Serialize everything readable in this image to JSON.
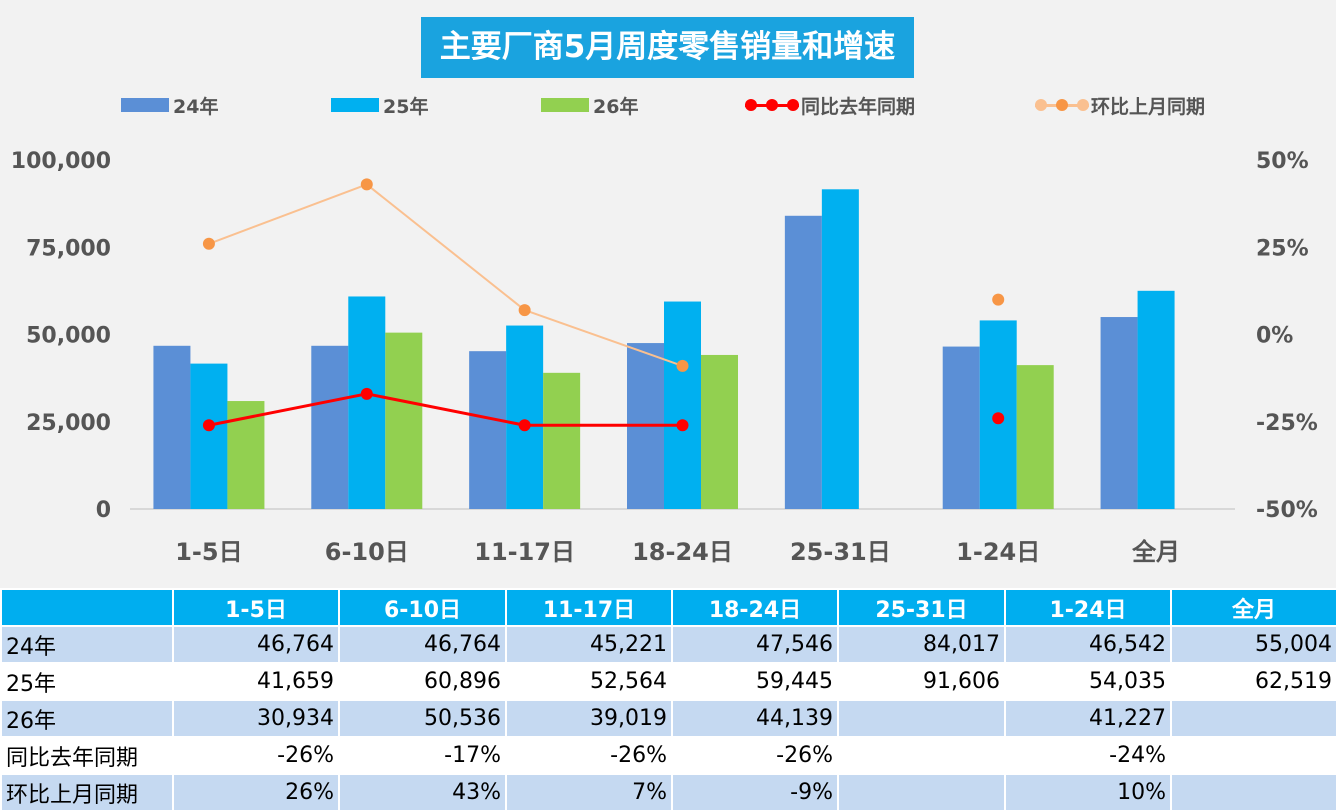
{
  "chart_data": {
    "type": "bar",
    "title": "主要厂商5月周度零售销量和增速",
    "categories": [
      "1-5日",
      "6-10日",
      "11-17日",
      "18-24日",
      "25-31日",
      "1-24日",
      "全月"
    ],
    "series": [
      {
        "name": "24年",
        "kind": "bar",
        "color": "#5b8fd6",
        "values": [
          46764,
          46764,
          45221,
          47546,
          84017,
          46542,
          55004
        ]
      },
      {
        "name": "25年",
        "kind": "bar",
        "color": "#00b0f0",
        "values": [
          41659,
          60896,
          52564,
          59445,
          91606,
          54035,
          62519
        ]
      },
      {
        "name": "26年",
        "kind": "bar",
        "color": "#92d050",
        "values": [
          30934,
          50536,
          39019,
          44139,
          null,
          41227,
          null
        ]
      },
      {
        "name": "同比去年同期",
        "kind": "line",
        "axis": "right",
        "color": "#ff0000",
        "values": [
          -26,
          -17,
          -26,
          -26,
          null,
          -24,
          null
        ]
      },
      {
        "name": "环比上月同期",
        "kind": "line",
        "axis": "right",
        "color": "#f79646",
        "line_color": "#fac090",
        "values": [
          26,
          43,
          7,
          -9,
          null,
          10,
          null
        ]
      }
    ],
    "y_left": {
      "min": 0,
      "max": 100000,
      "ticks": [
        "0",
        "25,000",
        "50,000",
        "75,000",
        "100,000"
      ]
    },
    "y_right": {
      "min": -50,
      "max": 50,
      "unit": "%",
      "ticks": [
        "-50%",
        "-25%",
        "0%",
        "25%",
        "50%"
      ]
    },
    "legend_placement": "top",
    "grid": false
  },
  "table": {
    "header": [
      "",
      "1-5日",
      "6-10日",
      "11-17日",
      "18-24日",
      "25-31日",
      "1-24日",
      "全月"
    ],
    "rows": [
      {
        "label": "24年",
        "cells": [
          "46,764",
          "46,764",
          "45,221",
          "47,546",
          "84,017",
          "46,542",
          "55,004"
        ]
      },
      {
        "label": "25年",
        "cells": [
          "41,659",
          "60,896",
          "52,564",
          "59,445",
          "91,606",
          "54,035",
          "62,519"
        ]
      },
      {
        "label": "26年",
        "cells": [
          "30,934",
          "50,536",
          "39,019",
          "44,139",
          "",
          "41,227",
          ""
        ]
      },
      {
        "label": "同比去年同期",
        "cells": [
          "-26%",
          "-17%",
          "-26%",
          "-26%",
          "",
          "-24%",
          ""
        ]
      },
      {
        "label": "环比上月同期",
        "cells": [
          "26%",
          "43%",
          "7%",
          "-9%",
          "",
          "10%",
          ""
        ]
      }
    ]
  }
}
